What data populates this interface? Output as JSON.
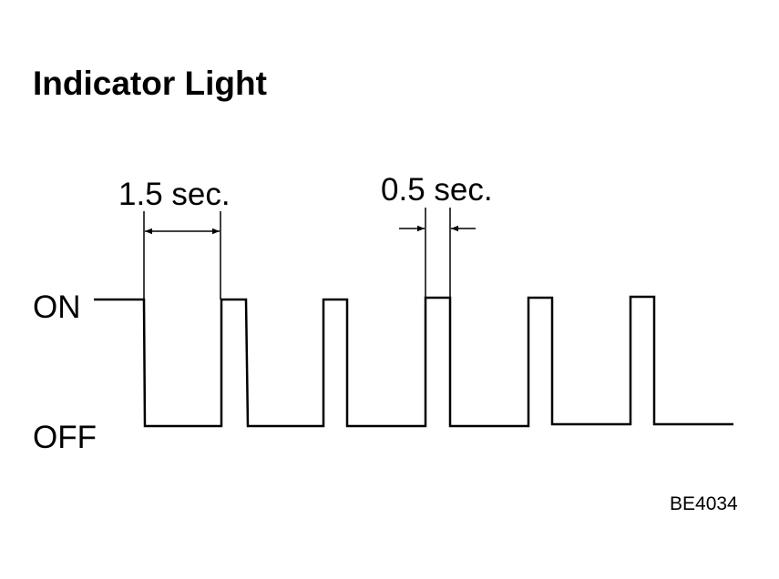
{
  "title": "Indicator Light",
  "labels": {
    "interval_long": "1.5 sec.",
    "interval_short": "0.5 sec.",
    "on": "ON",
    "off": "OFF"
  },
  "figure_id": "BE4034"
}
